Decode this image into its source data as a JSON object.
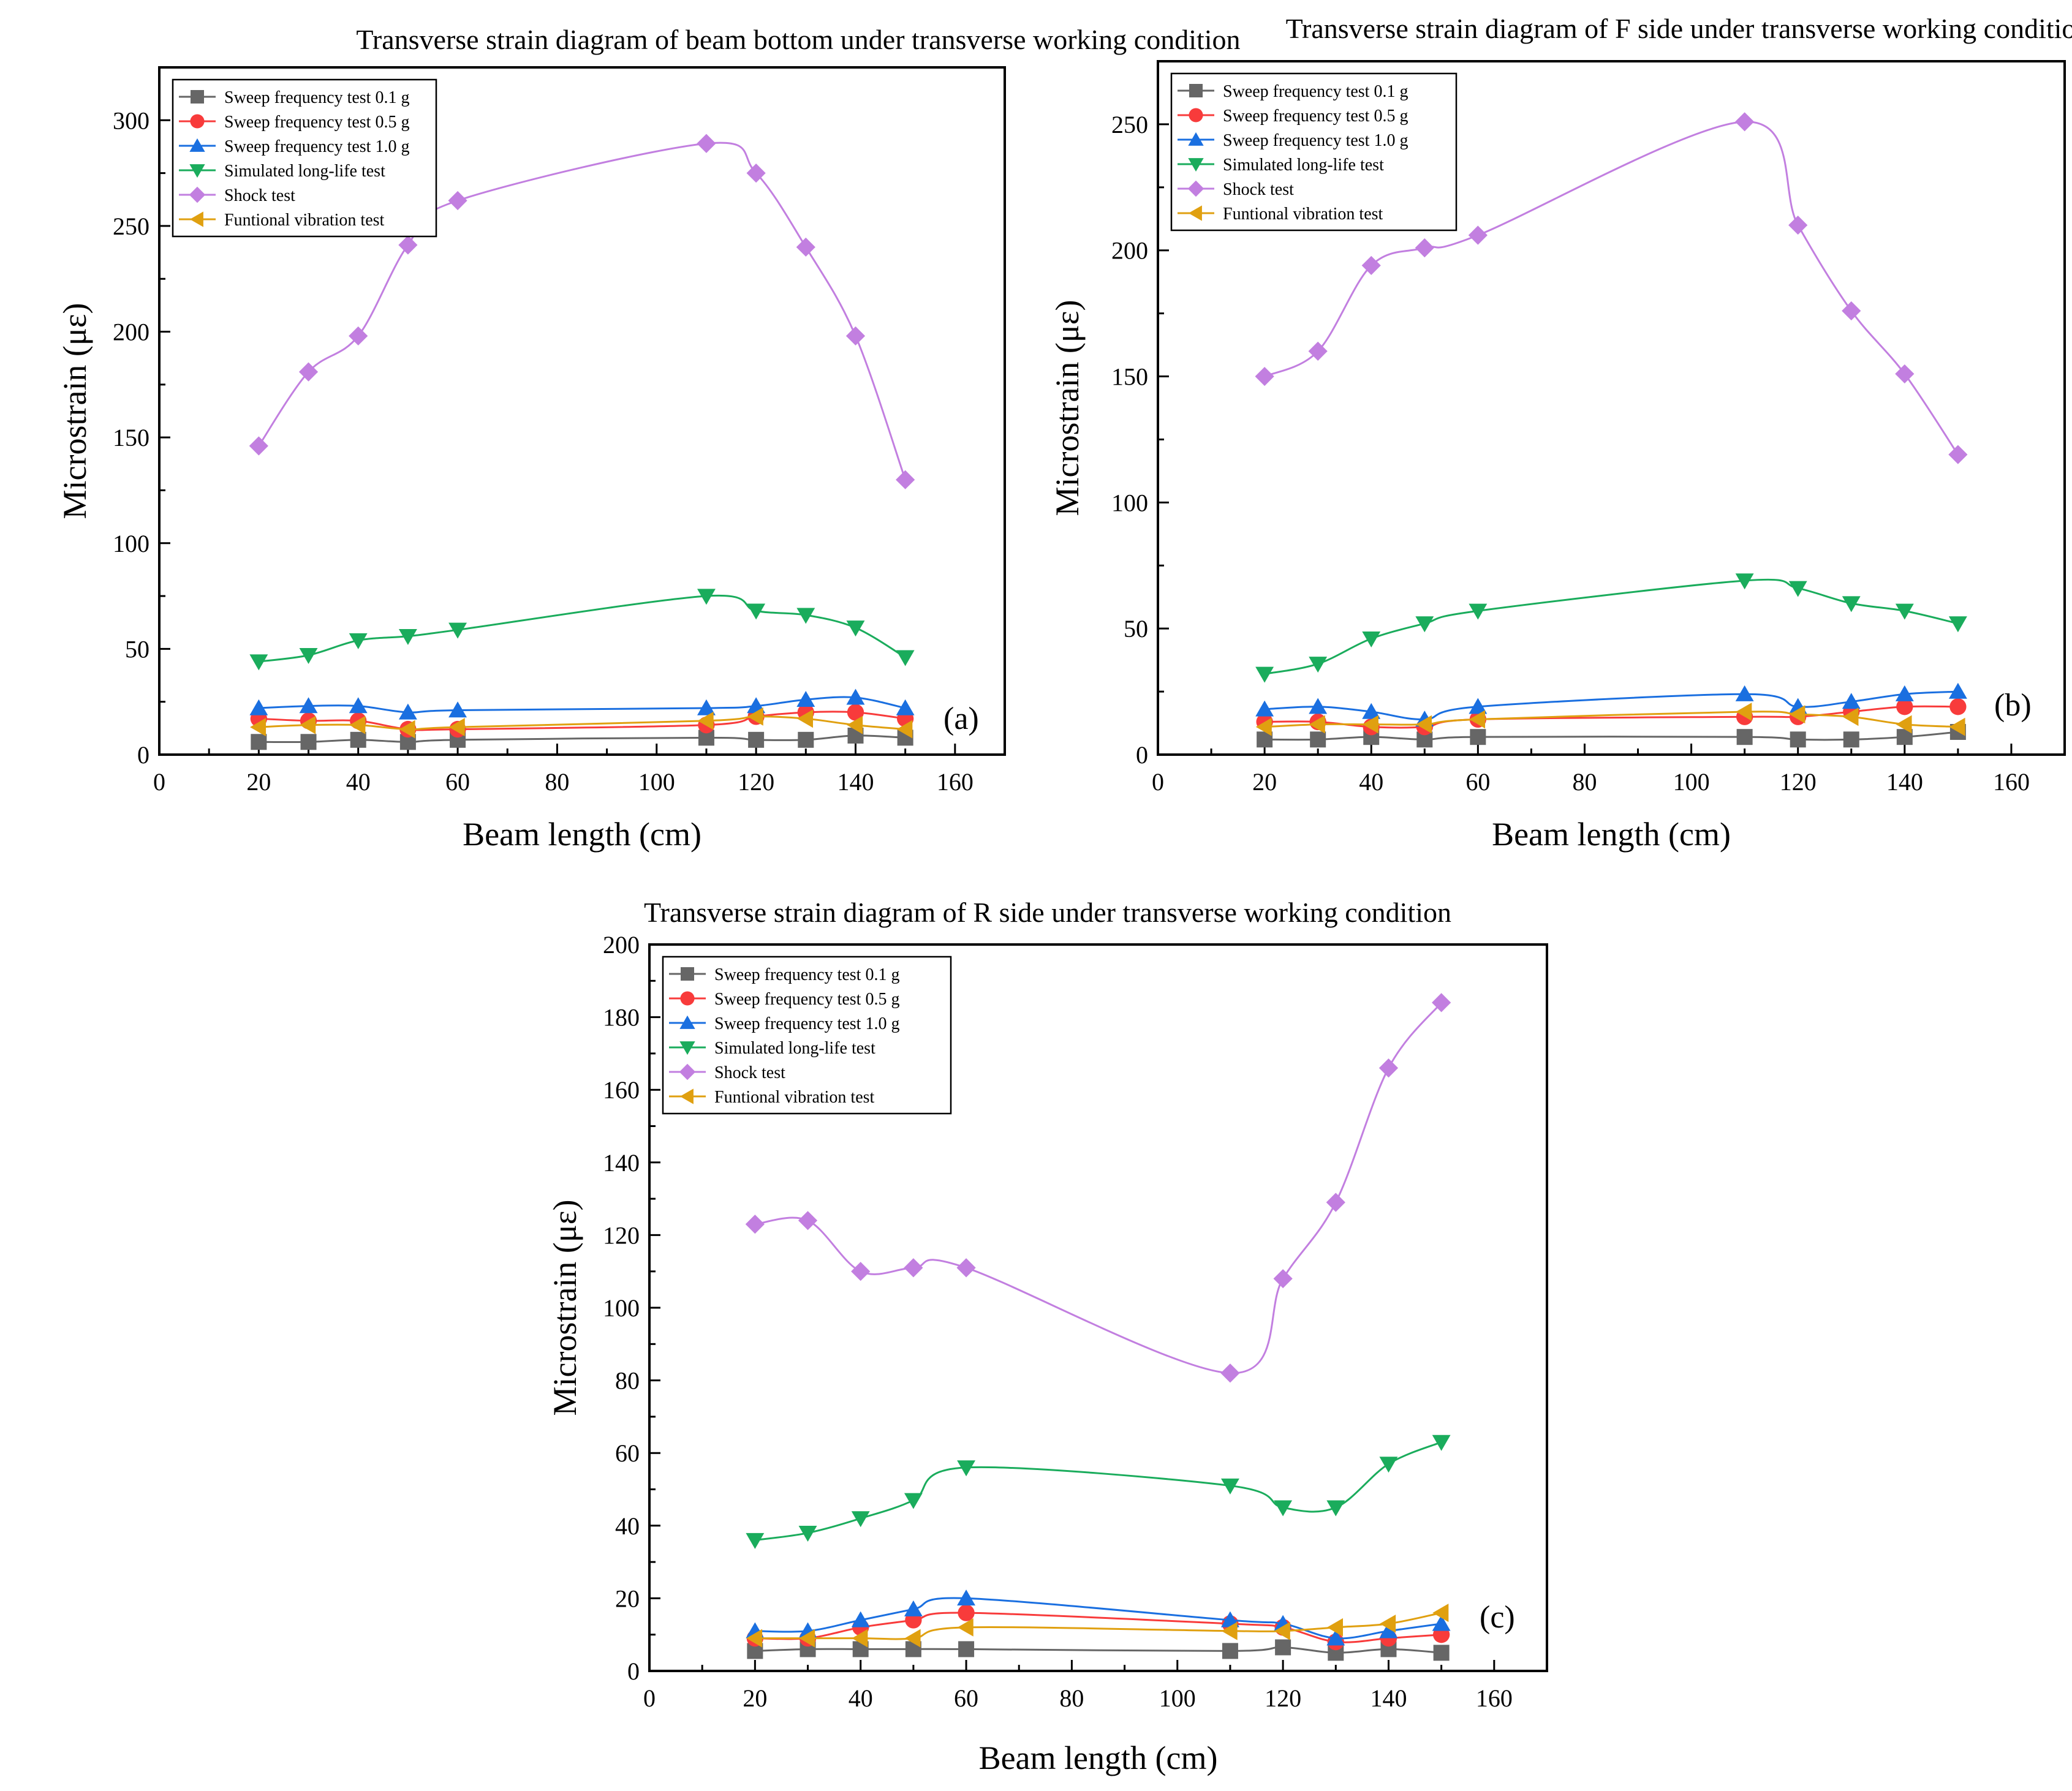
{
  "chart_data": [
    {
      "type": "line",
      "panel": "(a)",
      "title": "Transverse strain diagram of beam bottom under transverse working condition",
      "xlabel": "Beam length (cm)",
      "ylabel": "Microstrain (με)",
      "xlim": [
        0,
        170
      ],
      "ylim": [
        0,
        325
      ],
      "xticks": [
        0,
        20,
        40,
        60,
        80,
        100,
        120,
        140,
        160
      ],
      "yticks": [
        0,
        50,
        100,
        150,
        200,
        250,
        300
      ],
      "grid": false,
      "legend_position": "top-left",
      "x": [
        20,
        30,
        40,
        50,
        60,
        110,
        120,
        130,
        140,
        150
      ],
      "series": [
        {
          "name": "Sweep frequency test 0.1 g",
          "color": "#666666",
          "marker": "square",
          "values": [
            6,
            6,
            7,
            6,
            7,
            8,
            7,
            7,
            9,
            8
          ]
        },
        {
          "name": "Sweep frequency test 0.5 g",
          "color": "#f83b3b",
          "marker": "circle",
          "values": [
            17,
            16,
            16,
            12,
            12,
            14,
            18,
            20,
            20,
            17
          ]
        },
        {
          "name": "Sweep frequency test 1.0 g",
          "color": "#1a6fe0",
          "marker": "triangle-up",
          "values": [
            22,
            23,
            23,
            20,
            21,
            22,
            23,
            26,
            27,
            22
          ]
        },
        {
          "name": "Simulated long-life test",
          "color": "#1aac5c",
          "marker": "triangle-down",
          "values": [
            44,
            47,
            54,
            56,
            59,
            75,
            68,
            66,
            60,
            46
          ]
        },
        {
          "name": "Shock test",
          "color": "#c27fe0",
          "marker": "diamond",
          "values": [
            146,
            181,
            198,
            241,
            262,
            289,
            275,
            240,
            198,
            130
          ]
        },
        {
          "name": "Funtional vibration test",
          "color": "#e0a010",
          "marker": "triangle-left",
          "values": [
            13,
            14,
            14,
            12,
            13,
            16,
            18,
            17,
            14,
            12
          ]
        }
      ]
    },
    {
      "type": "line",
      "panel": "(b)",
      "title": "Transverse strain diagram of F side under transverse working condition",
      "xlabel": "Beam length (cm)",
      "ylabel": "Microstrain (με)",
      "xlim": [
        0,
        170
      ],
      "ylim": [
        0,
        275
      ],
      "xticks": [
        0,
        20,
        40,
        60,
        80,
        100,
        120,
        140,
        160
      ],
      "yticks": [
        0,
        50,
        100,
        150,
        200,
        250
      ],
      "grid": false,
      "legend_position": "top-left",
      "x": [
        20,
        30,
        40,
        50,
        60,
        110,
        120,
        130,
        140,
        150
      ],
      "series": [
        {
          "name": "Sweep frequency test 0.1 g",
          "color": "#666666",
          "marker": "square",
          "values": [
            6,
            6,
            7,
            6,
            7,
            7,
            6,
            6,
            7,
            9
          ]
        },
        {
          "name": "Sweep frequency test 0.5 g",
          "color": "#f83b3b",
          "marker": "circle",
          "values": [
            13,
            13,
            11,
            11,
            14,
            15,
            15,
            17,
            19,
            19
          ]
        },
        {
          "name": "Sweep frequency test 1.0 g",
          "color": "#1a6fe0",
          "marker": "triangle-up",
          "values": [
            18,
            19,
            17,
            14,
            19,
            24,
            19,
            21,
            24,
            25
          ]
        },
        {
          "name": "Simulated long-life test",
          "color": "#1aac5c",
          "marker": "triangle-down",
          "values": [
            32,
            36,
            46,
            52,
            57,
            69,
            66,
            60,
            57,
            52
          ]
        },
        {
          "name": "Shock test",
          "color": "#c27fe0",
          "marker": "diamond",
          "values": [
            150,
            160,
            194,
            201,
            206,
            251,
            210,
            176,
            151,
            119
          ]
        },
        {
          "name": "Funtional vibration test",
          "color": "#e0a010",
          "marker": "triangle-left",
          "values": [
            11,
            12,
            12,
            12,
            14,
            17,
            16,
            15,
            12,
            11
          ]
        }
      ]
    },
    {
      "type": "line",
      "panel": "(c)",
      "title": "Transverse strain diagram of R side under transverse working condition",
      "xlabel": "Beam length (cm)",
      "ylabel": "Microstrain (με)",
      "xlim": [
        0,
        170
      ],
      "ylim": [
        0,
        200
      ],
      "xticks": [
        0,
        20,
        40,
        60,
        80,
        100,
        120,
        140,
        160
      ],
      "yticks": [
        0,
        20,
        40,
        60,
        80,
        100,
        120,
        140,
        160,
        180,
        200
      ],
      "grid": false,
      "legend_position": "top-left",
      "x": [
        20,
        30,
        40,
        50,
        60,
        110,
        120,
        130,
        140,
        150
      ],
      "series": [
        {
          "name": "Sweep frequency test 0.1 g",
          "color": "#666666",
          "marker": "square",
          "values": [
            5.5,
            6,
            6,
            6,
            6,
            5.5,
            6.5,
            5,
            6,
            5
          ]
        },
        {
          "name": "Sweep frequency test 0.5 g",
          "color": "#f83b3b",
          "marker": "circle",
          "values": [
            9,
            9,
            12,
            14,
            16,
            13,
            12,
            8,
            9,
            10
          ]
        },
        {
          "name": "Sweep frequency test 1.0 g",
          "color": "#1a6fe0",
          "marker": "triangle-up",
          "values": [
            11,
            11,
            14,
            17,
            20,
            14,
            13,
            9,
            11,
            13
          ]
        },
        {
          "name": "Simulated long-life test",
          "color": "#1aac5c",
          "marker": "triangle-down",
          "values": [
            36,
            38,
            42,
            47,
            56,
            51,
            45,
            45,
            57,
            63
          ]
        },
        {
          "name": "Shock test",
          "color": "#c27fe0",
          "marker": "diamond",
          "values": [
            123,
            124,
            110,
            111,
            111,
            82,
            108,
            129,
            166,
            184
          ]
        },
        {
          "name": "Funtional vibration test",
          "color": "#e0a010",
          "marker": "triangle-left",
          "values": [
            9,
            9,
            9,
            9,
            12,
            11,
            11,
            12,
            13,
            16
          ]
        }
      ]
    }
  ]
}
